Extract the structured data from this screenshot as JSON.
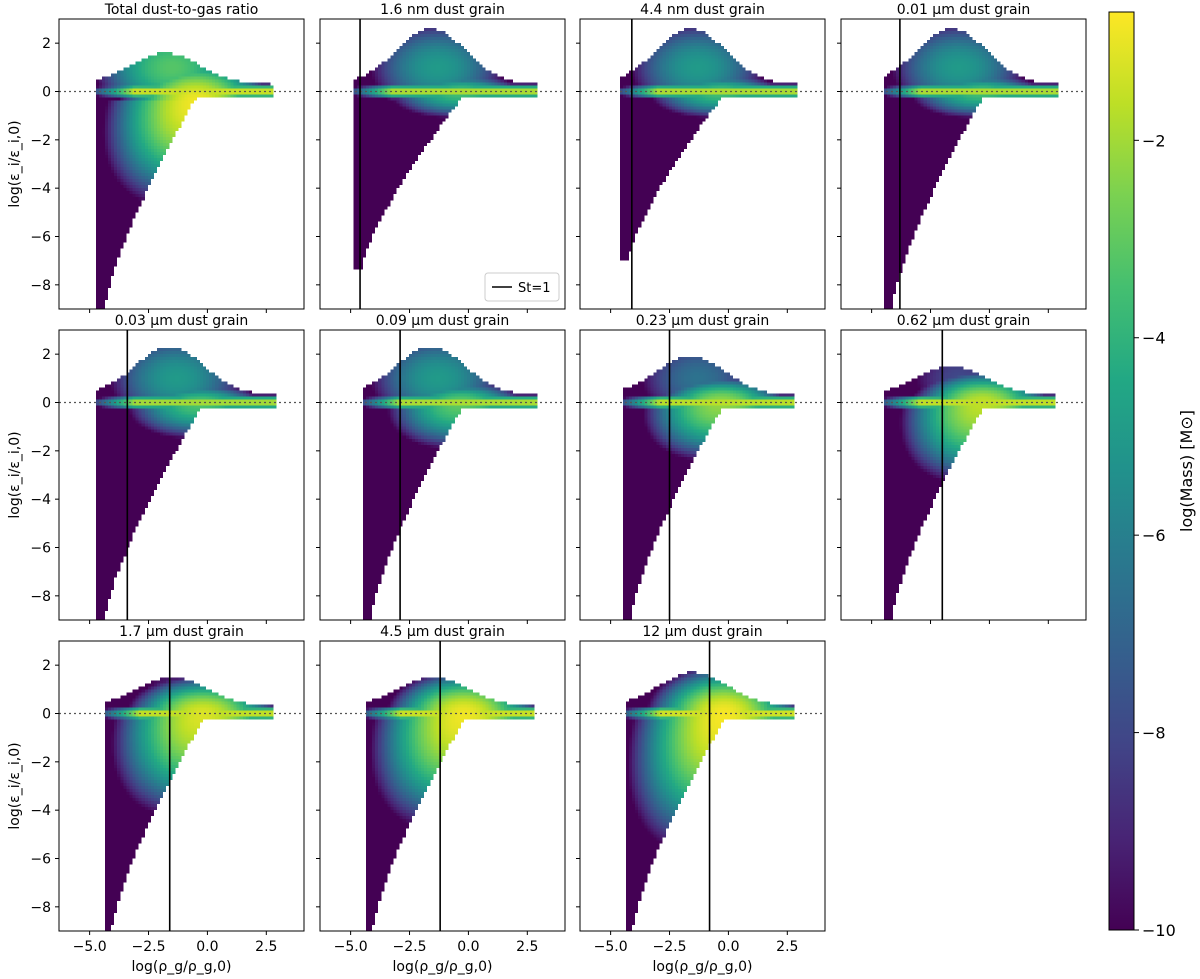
{
  "chart_data": {
    "type": "heatmap",
    "figure": "2D mass-weighted histograms of dust-to-gas ratio versus gas density",
    "xlabel": "log(ρ_g/ρ_g,0)",
    "ylabel": "log(ε_i/ε_i,0)",
    "xlim": [
      -6.3,
      4.1
    ],
    "ylim": [
      -9.0,
      3.0
    ],
    "x_ticks": [
      -5.0,
      -2.5,
      0.0,
      2.5
    ],
    "x_tick_labels": [
      "−5.0",
      "−2.5",
      "0.0",
      "2.5"
    ],
    "y_ticks": [
      -8,
      -6,
      -4,
      -2,
      0,
      2
    ],
    "y_tick_labels": [
      "−8",
      "−6",
      "−4",
      "−2",
      "0",
      "2"
    ],
    "grid": false,
    "reference_line": {
      "y": 0,
      "style": "dotted"
    },
    "legend": {
      "entries": [
        "St=1"
      ],
      "placement": "lower right (panel 2)"
    },
    "colorbar": {
      "label": "log(Mass) [M⊙]",
      "colormap": "viridis",
      "range": [
        -10.0,
        -0.7
      ],
      "ticks": [
        -10,
        -8,
        -6,
        -4,
        -2
      ],
      "tick_labels": [
        "−10",
        "−8",
        "−6",
        "−4",
        "−2"
      ]
    },
    "panels": [
      {
        "title": "Total dust-to-gas ratio",
        "st1_x": null,
        "shape": {
          "x_min": -4.7,
          "x_max": 2.8,
          "bottom": -9.0,
          "top": 1.6,
          "core_x": -0.5,
          "core_y": -0.4,
          "core_peak": -0.9,
          "spread_x": 1.6,
          "spread_y": 1.0,
          "lower_stretch": 1.0,
          "band_peak": -1.2,
          "hi_dust_peak": -3.2
        }
      },
      {
        "title": "1.6 nm dust grain",
        "st1_x": -4.6,
        "shape": {
          "x_min": -4.9,
          "x_max": 2.9,
          "bottom": -7.4,
          "top": 2.6,
          "core_x": -0.3,
          "core_y": 0.0,
          "core_peak": -3.5,
          "spread_x": 1.5,
          "spread_y": 0.4,
          "lower_stretch": 0.3,
          "band_peak": -1.6,
          "hi_dust_peak": -5.0
        }
      },
      {
        "title": "4.4 nm dust grain",
        "st1_x": -4.1,
        "shape": {
          "x_min": -4.6,
          "x_max": 2.9,
          "bottom": -7.0,
          "top": 2.6,
          "core_x": -0.3,
          "core_y": 0.0,
          "core_peak": -3.5,
          "spread_x": 1.5,
          "spread_y": 0.4,
          "lower_stretch": 0.3,
          "band_peak": -1.6,
          "hi_dust_peak": -5.0
        }
      },
      {
        "title": "0.01 μm dust grain",
        "st1_x": -3.8,
        "shape": {
          "x_min": -4.5,
          "x_max": 2.9,
          "bottom": -9.0,
          "top": 2.6,
          "core_x": -0.3,
          "core_y": 0.0,
          "core_peak": -3.5,
          "spread_x": 1.5,
          "spread_y": 0.4,
          "lower_stretch": 0.3,
          "band_peak": -1.6,
          "hi_dust_peak": -5.0
        }
      },
      {
        "title": "0.03 μm dust grain",
        "st1_x": -3.4,
        "shape": {
          "x_min": -4.7,
          "x_max": 2.9,
          "bottom": -9.0,
          "top": 2.3,
          "core_x": -0.3,
          "core_y": 0.0,
          "core_peak": -3.3,
          "spread_x": 1.5,
          "spread_y": 0.45,
          "lower_stretch": 0.4,
          "band_peak": -1.7,
          "hi_dust_peak": -5.0
        }
      },
      {
        "title": "0.09 μm dust grain",
        "st1_x": -2.9,
        "shape": {
          "x_min": -4.5,
          "x_max": 2.9,
          "bottom": -9.0,
          "top": 2.3,
          "core_x": -0.3,
          "core_y": 0.0,
          "core_peak": -3.0,
          "spread_x": 1.5,
          "spread_y": 0.5,
          "lower_stretch": 0.5,
          "band_peak": -1.6,
          "hi_dust_peak": -5.0
        }
      },
      {
        "title": "0.23 μm dust grain",
        "st1_x": -2.5,
        "shape": {
          "x_min": -4.5,
          "x_max": 2.8,
          "bottom": -9.0,
          "top": 1.9,
          "core_x": -0.3,
          "core_y": 0.0,
          "core_peak": -2.2,
          "spread_x": 1.5,
          "spread_y": 0.6,
          "lower_stretch": 0.6,
          "band_peak": -1.4,
          "hi_dust_peak": -6.5
        }
      },
      {
        "title": "0.62 μm dust grain",
        "st1_x": -2.0,
        "shape": {
          "x_min": -4.5,
          "x_max": 2.8,
          "bottom": -9.0,
          "top": 1.5,
          "core_x": -0.3,
          "core_y": 0.0,
          "core_peak": -1.6,
          "spread_x": 1.5,
          "spread_y": 0.7,
          "lower_stretch": 0.8,
          "band_peak": -1.3,
          "hi_dust_peak": -8.0
        }
      },
      {
        "title": "1.7 μm dust grain",
        "st1_x": -1.6,
        "shape": {
          "x_min": -4.4,
          "x_max": 2.8,
          "bottom": -9.0,
          "top": 1.5,
          "core_x": -0.2,
          "core_y": 0.0,
          "core_peak": -1.2,
          "spread_x": 1.6,
          "spread_y": 0.8,
          "lower_stretch": 1.0,
          "band_peak": -1.3,
          "hi_dust_peak": -9.0
        }
      },
      {
        "title": "4.5 μm dust grain",
        "st1_x": -1.2,
        "shape": {
          "x_min": -4.4,
          "x_max": 2.8,
          "bottom": -9.0,
          "top": 1.5,
          "core_x": -0.2,
          "core_y": 0.0,
          "core_peak": -0.9,
          "spread_x": 1.6,
          "spread_y": 0.9,
          "lower_stretch": 1.1,
          "band_peak": -1.2,
          "hi_dust_peak": -9.0
        }
      },
      {
        "title": "12 μm dust grain",
        "st1_x": -0.8,
        "shape": {
          "x_min": -4.4,
          "x_max": 2.8,
          "bottom": -9.0,
          "top": 1.7,
          "core_x": -0.2,
          "core_y": 0.0,
          "core_peak": -0.8,
          "spread_x": 1.6,
          "spread_y": 1.0,
          "lower_stretch": 1.3,
          "band_peak": -1.1,
          "hi_dust_peak": -9.0
        }
      }
    ]
  }
}
